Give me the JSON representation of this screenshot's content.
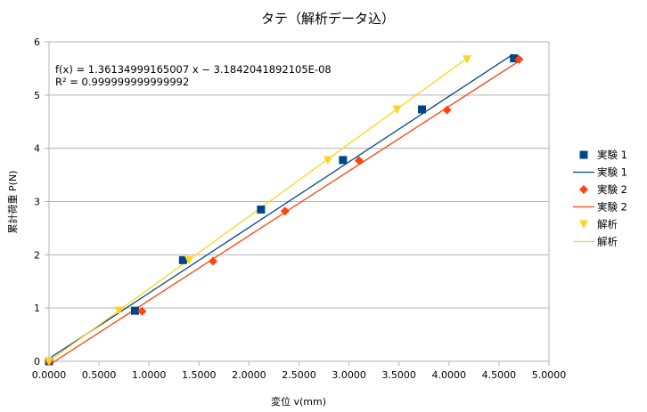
{
  "chart_data": {
    "type": "scatter",
    "title": "タテ（解析データ込）",
    "xlabel": "変位 v(mm)",
    "ylabel": "累計荷重 P(N)",
    "xlim": [
      0,
      5
    ],
    "ylim": [
      0,
      6
    ],
    "x_ticks": [
      "0.0000",
      "0.5000",
      "1.0000",
      "1.5000",
      "2.0000",
      "2.5000",
      "3.0000",
      "3.5000",
      "4.0000",
      "4.5000",
      "5.0000"
    ],
    "y_ticks": [
      "0",
      "1",
      "2",
      "3",
      "4",
      "5",
      "6"
    ],
    "grid": "horizontal",
    "legend_position": "right",
    "annotation": {
      "line1": "f(x) = 1.36134999165007 x − 3.1842041892105E-08",
      "line2": "R² = 0.999999999999992"
    },
    "series": [
      {
        "name": "実験 1",
        "marker": "square",
        "color": "#004586",
        "x": [
          0.0,
          0.86,
          1.34,
          2.12,
          2.94,
          3.73,
          4.65
        ],
        "y": [
          0.0,
          0.95,
          1.9,
          2.85,
          3.78,
          4.73,
          5.69
        ]
      },
      {
        "name": "実験 2",
        "marker": "diamond",
        "color": "#ff420e",
        "x": [
          0.0,
          0.93,
          1.64,
          2.36,
          3.1,
          3.98,
          4.7
        ],
        "y": [
          0.0,
          0.94,
          1.88,
          2.82,
          3.77,
          4.72,
          5.67
        ]
      },
      {
        "name": "解析",
        "marker": "triangle-down",
        "color": "#ffd320",
        "x": [
          0.0,
          0.7,
          1.4,
          2.79,
          3.48,
          4.18
        ],
        "y": [
          0.0,
          0.95,
          1.9,
          3.78,
          4.73,
          5.67
        ]
      }
    ],
    "trendlines": [
      {
        "name": "実験 1",
        "color": "#004586",
        "slope": 1.2316,
        "intercept": 0.05,
        "x_range": [
          0,
          4.63
        ]
      },
      {
        "name": "実験 2",
        "color": "#ff420e",
        "slope": 1.2145,
        "intercept": -0.07,
        "x_range": [
          0,
          4.7
        ]
      },
      {
        "name": "解析",
        "color": "#ffd320",
        "slope": 1.36135,
        "intercept": 0.0,
        "x_range": [
          0,
          4.18
        ]
      }
    ],
    "legend": [
      {
        "label": "実験 1",
        "kind": "marker",
        "marker": "square",
        "color": "#004586"
      },
      {
        "label": "実験 1",
        "kind": "line",
        "color": "#004586"
      },
      {
        "label": "実験 2",
        "kind": "marker",
        "marker": "diamond",
        "color": "#ff420e"
      },
      {
        "label": "実験 2",
        "kind": "line",
        "color": "#ff420e"
      },
      {
        "label": "解析",
        "kind": "marker",
        "marker": "triangle-down",
        "color": "#ffd320"
      },
      {
        "label": "解析",
        "kind": "line",
        "color": "#ffd320"
      }
    ]
  }
}
